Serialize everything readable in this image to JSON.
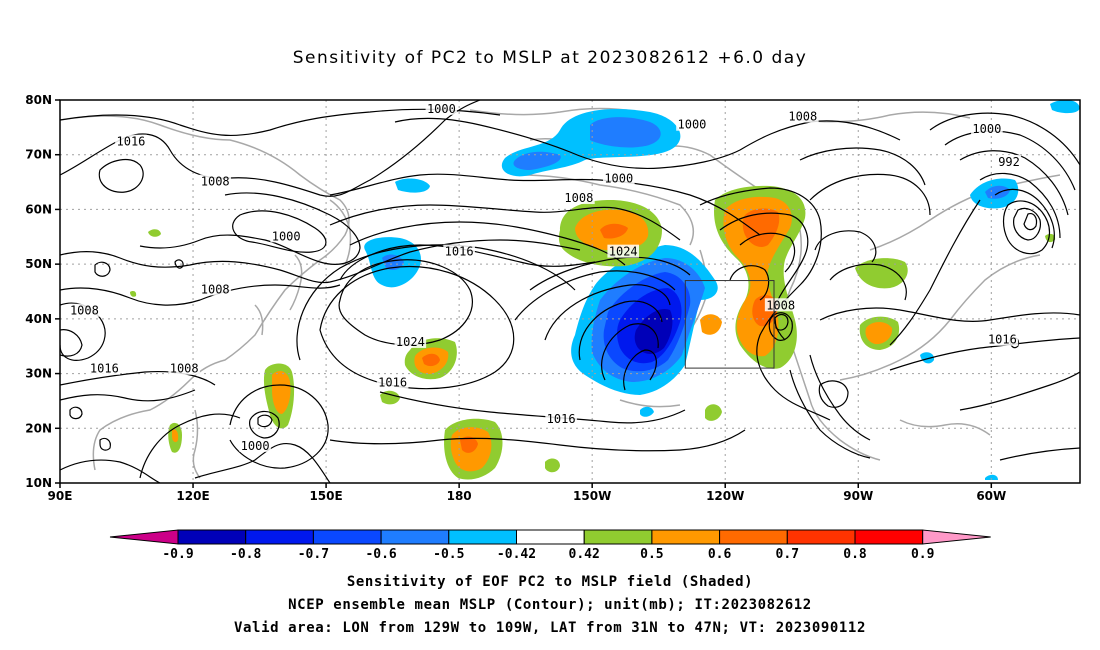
{
  "title": "Sensitivity of PC2 to MSLP at 2023082612 +6.0 day",
  "map": {
    "lat_labels": [
      "80N",
      "70N",
      "60N",
      "50N",
      "40N",
      "30N",
      "20N",
      "10N"
    ],
    "lon_labels": [
      "90E",
      "120E",
      "150E",
      "180",
      "150W",
      "120W",
      "90W",
      "60W"
    ],
    "lon_range": [
      90,
      320
    ],
    "lat_range": [
      10,
      80
    ],
    "valid_box": {
      "lon_west": -129,
      "lon_east": -109,
      "lat_south": 31,
      "lat_north": 47
    },
    "contour_labels": [
      {
        "text": "1000",
        "lon": 176,
        "lat": 78.2
      },
      {
        "text": "1000",
        "lon": 232.5,
        "lat": 75.3
      },
      {
        "text": "1008",
        "lon": 257.5,
        "lat": 76.8
      },
      {
        "text": "1000",
        "lon": 299,
        "lat": 74.5
      },
      {
        "text": "992",
        "lon": 304,
        "lat": 68.5
      },
      {
        "text": "1016",
        "lon": 106,
        "lat": 72.2
      },
      {
        "text": "1008",
        "lon": 125,
        "lat": 64.9
      },
      {
        "text": "1000",
        "lon": 216,
        "lat": 65.5
      },
      {
        "text": "1008",
        "lon": 207,
        "lat": 61.9
      },
      {
        "text": "1000",
        "lon": 141,
        "lat": 54.9
      },
      {
        "text": "1016",
        "lon": 180,
        "lat": 52.1
      },
      {
        "text": "1024",
        "lon": 217,
        "lat": 52.1
      },
      {
        "text": "1008",
        "lon": 125,
        "lat": 45.2
      },
      {
        "text": "1008",
        "lon": 252.5,
        "lat": 42.3
      },
      {
        "text": "1008",
        "lon": 95.5,
        "lat": 41.3
      },
      {
        "text": "1024",
        "lon": 169,
        "lat": 35.6
      },
      {
        "text": "1016",
        "lon": 302.5,
        "lat": 36.0
      },
      {
        "text": "1016",
        "lon": 100,
        "lat": 30.7
      },
      {
        "text": "1008",
        "lon": 118,
        "lat": 30.7
      },
      {
        "text": "1016",
        "lon": 165,
        "lat": 28.2
      },
      {
        "text": "1016",
        "lon": 203,
        "lat": 21.5
      },
      {
        "text": "1000",
        "lon": 134,
        "lat": 16.6
      }
    ]
  },
  "colorbar": {
    "labels": [
      "-0.9",
      "-0.8",
      "-0.7",
      "-0.6",
      "-0.5",
      "-0.42",
      "0.42",
      "0.5",
      "0.6",
      "0.7",
      "0.8",
      "0.9"
    ],
    "colors": [
      "#cc0088",
      "#0000b8",
      "#0018ee",
      "#0a48ff",
      "#1f7dff",
      "#00c0ff",
      "#ffffff",
      "#90cc30",
      "#ff9900",
      "#ff6a00",
      "#ff3300",
      "#ff0000",
      "#ff99c8"
    ]
  },
  "captions": {
    "line1": "Sensitivity of EOF PC2 to MSLP field (Shaded)",
    "line2": "NCEP ensemble mean MSLP (Contour); unit(mb); IT:2023082612",
    "line3": "Valid area: LON from 129W to 109W, LAT from 31N to 47N; VT: 2023090112"
  }
}
